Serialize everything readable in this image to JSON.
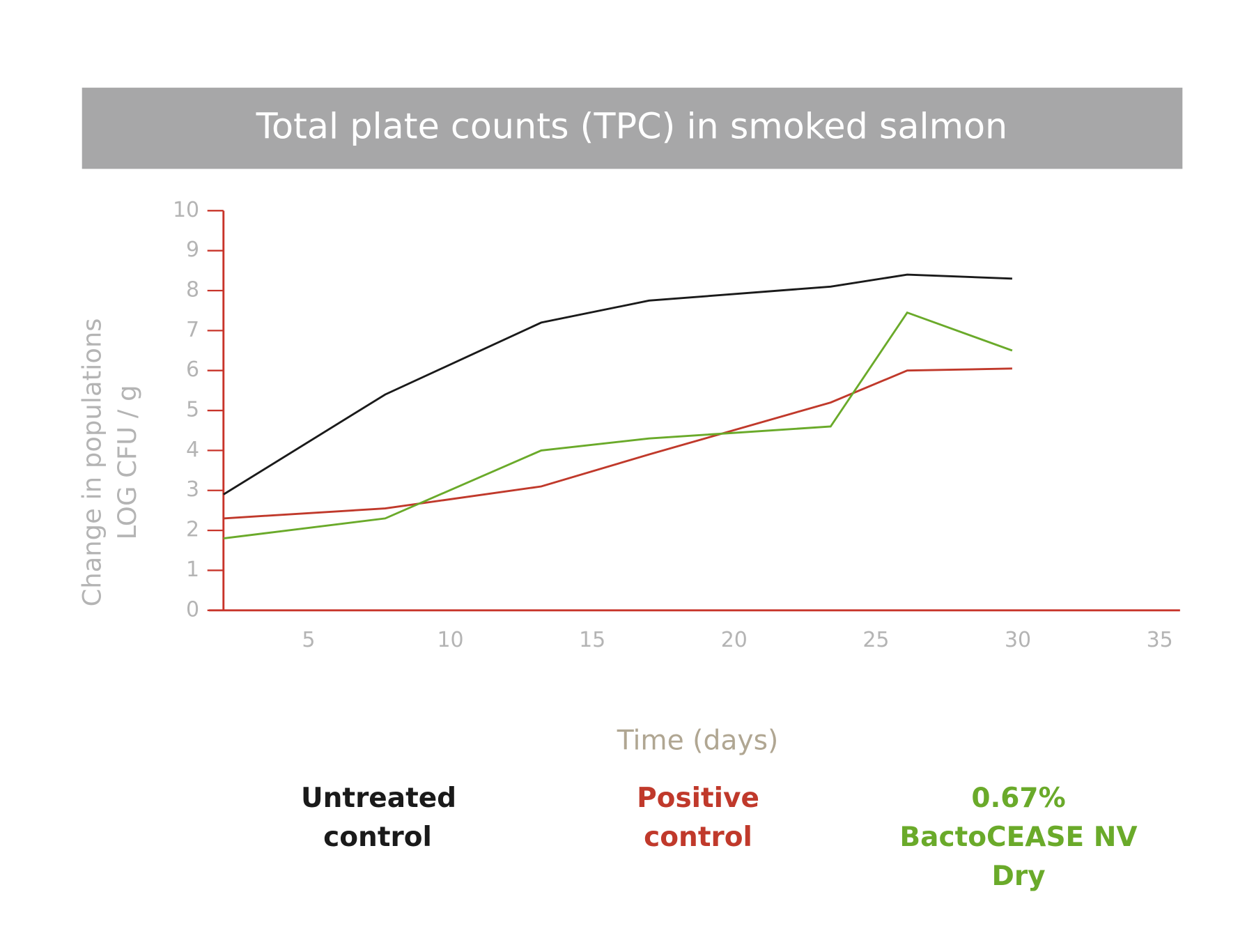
{
  "chart_data": {
    "type": "line",
    "title": "Total plate counts (TPC) in smoked salmon",
    "xlabel": "Time (days)",
    "ylabel": [
      "Change in populations",
      "LOG CFU / g"
    ],
    "x": [
      2,
      7.7,
      13.2,
      17,
      23.4,
      26.1,
      29.8
    ],
    "series": [
      {
        "name": "Untreated control",
        "color": "#1a1a1a",
        "values": [
          2.9,
          5.4,
          7.2,
          7.75,
          8.1,
          8.4,
          8.3
        ]
      },
      {
        "name": "Positive control",
        "color": "#c0392b",
        "values": [
          2.3,
          2.55,
          3.1,
          3.9,
          5.2,
          6.0,
          6.05
        ]
      },
      {
        "name": "0.67% BactoCEASE NV Dry",
        "color": "#6aaa2a",
        "values": [
          1.8,
          2.3,
          4.0,
          4.3,
          4.6,
          7.45,
          6.5
        ]
      }
    ],
    "xlim": [
      2,
      36
    ],
    "ylim": [
      0,
      10
    ],
    "xticks": [
      5,
      10,
      15,
      20,
      25,
      30,
      35
    ],
    "yticks": [
      0,
      1,
      2,
      3,
      4,
      5,
      6,
      7,
      8,
      9,
      10
    ],
    "axis_color": "#c8342a"
  }
}
